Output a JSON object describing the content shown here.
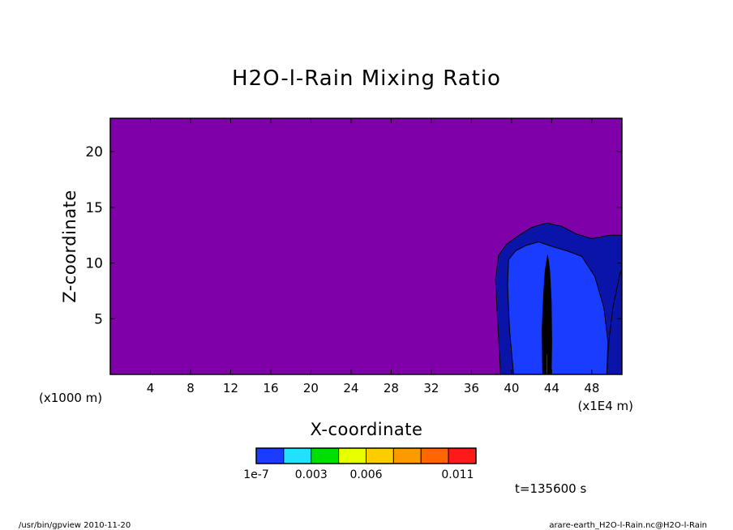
{
  "chart_data": {
    "type": "heatmap",
    "title": "H2O-l-Rain Mixing Ratio",
    "xlabel": "X-coordinate",
    "ylabel": "Z-coordinate",
    "x_unit_left": "(x1000 m)",
    "x_unit_right": "(x1E4 m)",
    "xlim": [
      0,
      51
    ],
    "ylim": [
      0,
      23
    ],
    "x_ticks": [
      4,
      8,
      12,
      16,
      20,
      24,
      28,
      32,
      36,
      40,
      44,
      48
    ],
    "y_ticks": [
      5,
      10,
      15,
      20
    ],
    "background_color": "#7f00a8",
    "colorbar": {
      "colors": [
        "#1a3cff",
        "#22e0ff",
        "#00e000",
        "#e8ff00",
        "#ffcc00",
        "#ff9900",
        "#ff6600",
        "#ff1a1a",
        "#ff8080"
      ],
      "bounds": [
        0,
        0.0015,
        0.003,
        0.0045,
        0.006,
        0.0075,
        0.009,
        0.0105,
        0.012
      ],
      "labels": [
        {
          "text": "1e-7",
          "value": 0
        },
        {
          "text": "0.003",
          "value": 0.003
        },
        {
          "text": "0.006",
          "value": 0.006
        },
        {
          "text": "0.011",
          "value": 0.011
        }
      ]
    },
    "regions": [
      {
        "level": "outer",
        "color": "#0a14a8",
        "boundary": [
          [
            38.9,
            0
          ],
          [
            38.6,
            5
          ],
          [
            38.4,
            8.5
          ],
          [
            38.7,
            10.7
          ],
          [
            39.5,
            11.7
          ],
          [
            40.6,
            12.4
          ],
          [
            42,
            13.2
          ],
          [
            43.5,
            13.6
          ],
          [
            45,
            13.3
          ],
          [
            46.5,
            12.6
          ],
          [
            48,
            12.2
          ],
          [
            49.8,
            12.5
          ],
          [
            51,
            12.5
          ],
          [
            51,
            0
          ]
        ]
      },
      {
        "level": "main",
        "color": "#1a3cff",
        "boundary": [
          [
            40.2,
            0
          ],
          [
            39.8,
            4
          ],
          [
            39.6,
            8
          ],
          [
            39.7,
            10.3
          ],
          [
            40.4,
            11.1
          ],
          [
            41.5,
            11.6
          ],
          [
            42.7,
            11.9
          ],
          [
            44,
            11.5
          ],
          [
            45.5,
            11.1
          ],
          [
            47,
            10.6
          ],
          [
            48.3,
            8.8
          ],
          [
            49.2,
            6
          ],
          [
            49.6,
            3
          ],
          [
            49.5,
            0
          ]
        ]
      },
      {
        "level": "outer",
        "color": "#0a14a8",
        "boundary": [
          [
            49.5,
            0
          ],
          [
            49.7,
            3
          ],
          [
            50.1,
            6
          ],
          [
            50.8,
            9
          ],
          [
            51,
            9.5
          ],
          [
            51,
            0
          ]
        ]
      },
      {
        "level": "core",
        "color": "#000000",
        "boundary": [
          [
            43.1,
            0
          ],
          [
            43.05,
            4
          ],
          [
            43.2,
            7.2
          ],
          [
            43.35,
            9.3
          ],
          [
            43.6,
            10.7
          ],
          [
            43.8,
            9.3
          ],
          [
            43.95,
            6.5
          ],
          [
            44,
            3
          ],
          [
            43.95,
            0
          ]
        ]
      },
      {
        "level": "peak",
        "color": "#ffffff",
        "boundary": [
          [
            43.45,
            0
          ],
          [
            43.45,
            1.8
          ],
          [
            43.55,
            1.8
          ],
          [
            43.55,
            0
          ]
        ]
      }
    ]
  },
  "footer": {
    "time": "t=135600 s",
    "left": "/usr/bin/gpview  2010-11-20",
    "right": "arare-earth_H2O-l-Rain.nc@H2O-l-Rain"
  }
}
